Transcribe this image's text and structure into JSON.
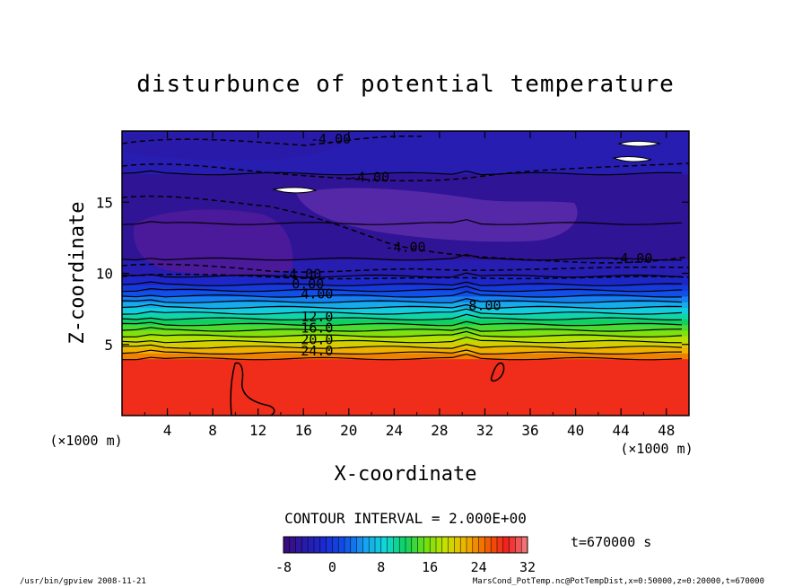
{
  "chart_data": {
    "type": "heatmap",
    "subtype": "filled-contour",
    "title": "disturbunce of potential temperature",
    "xlabel": "X-coordinate",
    "ylabel": "Z-coordinate",
    "x_unit_label": "(×1000 m)",
    "xlim": [
      0,
      50
    ],
    "ylim": [
      0,
      20
    ],
    "x_ticks": [
      4,
      8,
      12,
      16,
      20,
      24,
      28,
      32,
      36,
      40,
      44,
      48
    ],
    "x_tick_labels": [
      "4",
      "8",
      "12",
      "16",
      "20",
      "24",
      "28",
      "32",
      "36",
      "40",
      "44",
      "48"
    ],
    "y_ticks": [
      5,
      10,
      15
    ],
    "y_tick_labels": [
      "5",
      "10",
      "15"
    ],
    "contour_interval_text": "CONTOUR INTERVAL = 2.000E+00",
    "colorbar": {
      "min": -8,
      "max": 32,
      "ticks": [
        -8,
        0,
        8,
        16,
        24,
        32
      ],
      "tick_labels": [
        "-8",
        "0",
        "8",
        "16",
        "24",
        "32"
      ],
      "colors": [
        "#3a0a7a",
        "#2a1aa8",
        "#1a2ad0",
        "#1050e8",
        "#18a0f0",
        "#10d8d8",
        "#10d060",
        "#70e010",
        "#c8e000",
        "#f0b000",
        "#f06000",
        "#f02020",
        "#f08080"
      ]
    },
    "contour_labels": [
      {
        "text": "-4.00",
        "x": 18.4,
        "z": 19.5
      },
      {
        "text": "-4.00",
        "x": 21.8,
        "z": 16.8
      },
      {
        "text": "-4.00",
        "x": 25.0,
        "z": 11.9
      },
      {
        "text": "-4.00",
        "x": 45.0,
        "z": 11.1
      },
      {
        "text": "-4.00",
        "x": 15.8,
        "z": 10.0
      },
      {
        "text": "0.00",
        "x": 16.4,
        "z": 9.3
      },
      {
        "text": "4.00",
        "x": 17.2,
        "z": 8.6
      },
      {
        "text": "8.00",
        "x": 32.0,
        "z": 7.8
      },
      {
        "text": "12.0",
        "x": 17.2,
        "z": 7.0
      },
      {
        "text": "16.0",
        "x": 17.2,
        "z": 6.2
      },
      {
        "text": "20.0",
        "x": 17.2,
        "z": 5.4
      },
      {
        "text": "24.0",
        "x": 17.2,
        "z": 4.6
      }
    ],
    "bands": [
      {
        "z0": 0,
        "z1": 4.0,
        "value": 28
      },
      {
        "z0": 4.0,
        "z1": 4.4,
        "value": 24
      },
      {
        "z0": 4.4,
        "z1": 4.8,
        "value": 22
      },
      {
        "z0": 4.8,
        "z1": 5.2,
        "value": 20
      },
      {
        "z0": 5.2,
        "z1": 5.6,
        "value": 18
      },
      {
        "z0": 5.6,
        "z1": 6.0,
        "value": 16
      },
      {
        "z0": 6.0,
        "z1": 6.4,
        "value": 14
      },
      {
        "z0": 6.4,
        "z1": 6.8,
        "value": 12
      },
      {
        "z0": 6.8,
        "z1": 7.2,
        "value": 10
      },
      {
        "z0": 7.2,
        "z1": 7.6,
        "value": 8
      },
      {
        "z0": 7.6,
        "z1": 8.0,
        "value": 6
      },
      {
        "z0": 8.0,
        "z1": 8.4,
        "value": 4
      },
      {
        "z0": 8.4,
        "z1": 8.8,
        "value": 2
      },
      {
        "z0": 8.8,
        "z1": 9.2,
        "value": 0
      },
      {
        "z0": 9.2,
        "z1": 9.8,
        "value": -2
      },
      {
        "z0": 9.8,
        "z1": 11.0,
        "value": -4
      },
      {
        "z0": 11.0,
        "z1": 13.5,
        "value": -6
      },
      {
        "z0": 13.5,
        "z1": 17.0,
        "value": -6
      },
      {
        "z0": 17.0,
        "z1": 20.0,
        "value": -4
      }
    ]
  },
  "annotations": {
    "time_text": "t=670000 s",
    "footer_left": "/usr/bin/gpview  2008-11-21",
    "footer_right": "MarsCond_PotTemp.nc@PotTempDist,x=0:50000,z=0:20000,t=670000"
  }
}
